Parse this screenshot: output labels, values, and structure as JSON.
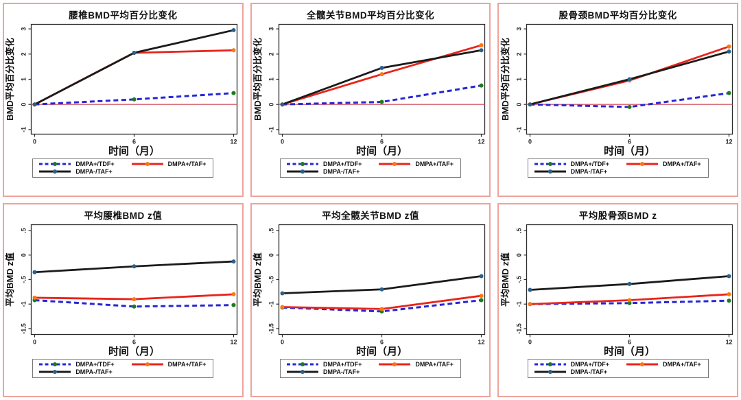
{
  "colors": {
    "reference_line": "#d45f6d",
    "panel_border": "#efa29c",
    "axis": "#2b2b2b"
  },
  "styles": {
    "tdf": {
      "line": "#2626d6",
      "marker": "#1e7a1e",
      "dashed": true
    },
    "taf": {
      "line": "#e9241a",
      "marker": "#ff7510",
      "dashed": false
    },
    "dmpa_taf": {
      "line": "#1b1b1b",
      "marker": "#2a608c",
      "dashed": false
    }
  },
  "legend": {
    "items": [
      {
        "label": "DMPA+/TDF+",
        "style": "tdf"
      },
      {
        "label": "DMPA+/TAF+",
        "style": "taf"
      },
      {
        "label": "DMPA-/TAF+",
        "style": "dmpa_taf"
      }
    ]
  },
  "chart_data": [
    {
      "id": "lumbar-pct-change",
      "type": "line",
      "title": "腰椎BMD平均百分比变化",
      "xlabel": "时间（月）",
      "ylabel": "BMD平均百分比变化",
      "x": [
        0,
        6,
        12
      ],
      "x_ticks": [
        "0",
        "6",
        "12"
      ],
      "xlim": [
        0,
        12
      ],
      "ylim": [
        -1.18,
        3.18
      ],
      "y_ticks": [
        {
          "v": 3,
          "label": "3"
        },
        {
          "v": 2,
          "label": "2"
        },
        {
          "v": 1,
          "label": "1"
        },
        {
          "v": 0,
          "label": "0"
        },
        {
          "v": -1,
          "label": "-1"
        }
      ],
      "reference_y": 0,
      "series": [
        {
          "name": "DMPA+/TDF+",
          "style": "tdf",
          "values": [
            0,
            0.2,
            0.45
          ]
        },
        {
          "name": "DMPA+/TAF+",
          "style": "taf",
          "values": [
            0,
            2.05,
            2.15
          ]
        },
        {
          "name": "DMPA-/TAF+",
          "style": "dmpa_taf",
          "values": [
            0,
            2.05,
            2.95
          ]
        }
      ]
    },
    {
      "id": "totalhip-pct-change",
      "type": "line",
      "title": "全髋关节BMD平均百分比变化",
      "xlabel": "时间（月）",
      "ylabel": "BMD平均百分比变化",
      "x": [
        0,
        6,
        12
      ],
      "x_ticks": [
        "0",
        "6",
        "12"
      ],
      "xlim": [
        0,
        12
      ],
      "ylim": [
        -1.18,
        3.18
      ],
      "y_ticks": [
        {
          "v": 3,
          "label": "3"
        },
        {
          "v": 2,
          "label": "2"
        },
        {
          "v": 1,
          "label": "1"
        },
        {
          "v": 0,
          "label": "0"
        },
        {
          "v": -1,
          "label": "-1"
        }
      ],
      "reference_y": 0,
      "series": [
        {
          "name": "DMPA+/TDF+",
          "style": "tdf",
          "values": [
            0,
            0.1,
            0.75
          ]
        },
        {
          "name": "DMPA+/TAF+",
          "style": "taf",
          "values": [
            0,
            1.2,
            2.35
          ]
        },
        {
          "name": "DMPA-/TAF+",
          "style": "dmpa_taf",
          "values": [
            0,
            1.45,
            2.15
          ]
        }
      ]
    },
    {
      "id": "femoralneck-pct-change",
      "type": "line",
      "title": "股骨颈BMD平均百分比变化",
      "xlabel": "时间（月）",
      "ylabel": "BMD平均百分比变化",
      "x": [
        0,
        6,
        12
      ],
      "x_ticks": [
        "0",
        "6",
        "12"
      ],
      "xlim": [
        0,
        12
      ],
      "ylim": [
        -1.18,
        3.18
      ],
      "y_ticks": [
        {
          "v": 3,
          "label": "3"
        },
        {
          "v": 2,
          "label": "2"
        },
        {
          "v": 1,
          "label": "1"
        },
        {
          "v": 0,
          "label": "0"
        },
        {
          "v": -1,
          "label": "-1"
        }
      ],
      "reference_y": 0,
      "series": [
        {
          "name": "DMPA+/TDF+",
          "style": "tdf",
          "values": [
            0,
            -0.1,
            0.45
          ]
        },
        {
          "name": "DMPA+/TAF+",
          "style": "taf",
          "values": [
            0,
            0.95,
            2.3
          ]
        },
        {
          "name": "DMPA-/TAF+",
          "style": "dmpa_taf",
          "values": [
            0,
            1.0,
            2.1
          ]
        }
      ]
    },
    {
      "id": "lumbar-zscore",
      "type": "line",
      "title": "平均腰椎BMD z值",
      "xlabel": "时间（月）",
      "ylabel": "平均BMD z值",
      "x": [
        0,
        6,
        12
      ],
      "x_ticks": [
        "0",
        "6",
        "12"
      ],
      "xlim": [
        0,
        12
      ],
      "ylim": [
        -1.62,
        0.62
      ],
      "y_ticks": [
        {
          "v": 0.5,
          "label": ".5"
        },
        {
          "v": 0,
          "label": "0"
        },
        {
          "v": -0.5,
          "label": "-.5"
        },
        {
          "v": -1,
          "label": "-1"
        },
        {
          "v": -1.5,
          "label": "-1.5"
        }
      ],
      "reference_y": null,
      "series": [
        {
          "name": "DMPA+/TDF+",
          "style": "tdf",
          "values": [
            -0.92,
            -1.05,
            -1.02
          ]
        },
        {
          "name": "DMPA+/TAF+",
          "style": "taf",
          "values": [
            -0.87,
            -0.9,
            -0.8
          ]
        },
        {
          "name": "DMPA-/TAF+",
          "style": "dmpa_taf",
          "values": [
            -0.35,
            -0.23,
            -0.13
          ]
        }
      ]
    },
    {
      "id": "totalhip-zscore",
      "type": "line",
      "title": "平均全髋关节BMD z值",
      "xlabel": "时间（月）",
      "ylabel": "平均BMD z值",
      "x": [
        0,
        6,
        12
      ],
      "x_ticks": [
        "0",
        "6",
        "12"
      ],
      "xlim": [
        0,
        12
      ],
      "ylim": [
        -1.62,
        0.62
      ],
      "y_ticks": [
        {
          "v": 0.5,
          "label": ".5"
        },
        {
          "v": 0,
          "label": "0"
        },
        {
          "v": -0.5,
          "label": "-.5"
        },
        {
          "v": -1,
          "label": "-1"
        },
        {
          "v": -1.5,
          "label": "-1.5"
        }
      ],
      "reference_y": null,
      "series": [
        {
          "name": "DMPA+/TDF+",
          "style": "tdf",
          "values": [
            -1.07,
            -1.15,
            -0.92
          ]
        },
        {
          "name": "DMPA+/TAF+",
          "style": "taf",
          "values": [
            -1.06,
            -1.1,
            -0.83
          ]
        },
        {
          "name": "DMPA-/TAF+",
          "style": "dmpa_taf",
          "values": [
            -0.78,
            -0.7,
            -0.43
          ]
        }
      ]
    },
    {
      "id": "femoralneck-zscore",
      "type": "line",
      "title": "平均股骨颈BMD z",
      "xlabel": "时间（月）",
      "ylabel": "平均BMD z值",
      "x": [
        0,
        6,
        12
      ],
      "x_ticks": [
        "0",
        "6",
        "12"
      ],
      "xlim": [
        0,
        12
      ],
      "ylim": [
        -1.62,
        0.62
      ],
      "y_ticks": [
        {
          "v": 0.5,
          "label": ".5"
        },
        {
          "v": 0,
          "label": "0"
        },
        {
          "v": -0.5,
          "label": "-.5"
        },
        {
          "v": -1,
          "label": "-1"
        },
        {
          "v": -1.5,
          "label": "-1.5"
        }
      ],
      "reference_y": null,
      "series": [
        {
          "name": "DMPA+/TDF+",
          "style": "tdf",
          "values": [
            -1.0,
            -0.98,
            -0.93
          ]
        },
        {
          "name": "DMPA+/TAF+",
          "style": "taf",
          "values": [
            -1.0,
            -0.92,
            -0.8
          ]
        },
        {
          "name": "DMPA-/TAF+",
          "style": "dmpa_taf",
          "values": [
            -0.71,
            -0.59,
            -0.43
          ]
        }
      ]
    }
  ]
}
